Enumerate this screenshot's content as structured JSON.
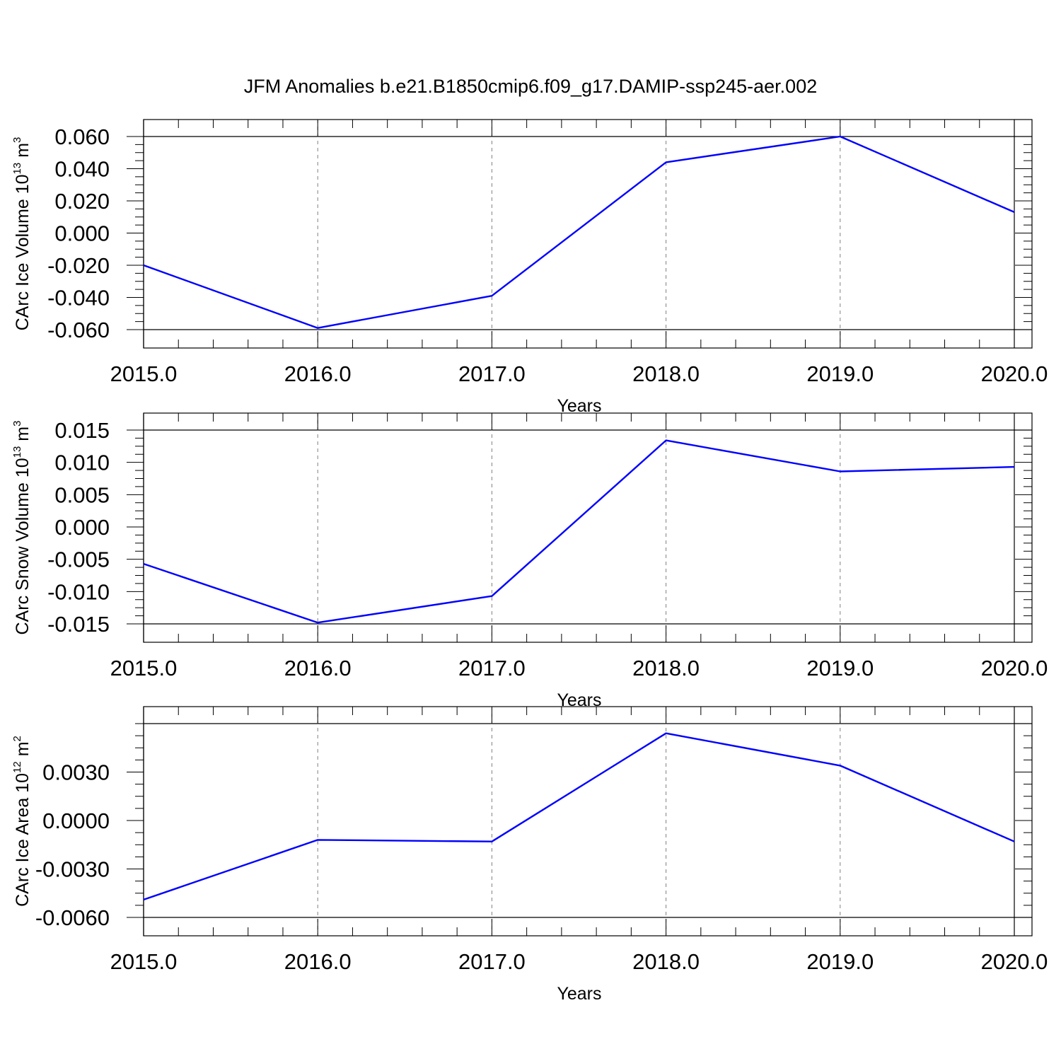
{
  "title": "JFM Anomalies b.e21.B1850cmip6.f09_g17.DAMIP-ssp245-aer.002",
  "colors": {
    "line": "#0000ff",
    "axis": "#000000",
    "grid": "#808080",
    "background": "#ffffff"
  },
  "chart_data": [
    {
      "type": "line",
      "xlabel": "Years",
      "ylabel": {
        "text": "CArc Ice Volume 10",
        "exponent": "13",
        "unit": "m",
        "unit_exponent": "3"
      },
      "x": [
        2015,
        2016,
        2017,
        2018,
        2019,
        2020
      ],
      "x_tick_labels": [
        "2015.0",
        "2016.0",
        "2017.0",
        "2018.0",
        "2019.0",
        "2020.0"
      ],
      "series": [
        {
          "values": [
            -0.02,
            -0.059,
            -0.039,
            0.044,
            0.06,
            0.013
          ]
        }
      ],
      "ylim": [
        -0.06,
        0.06
      ],
      "y_ticks": [
        -0.06,
        -0.04,
        -0.02,
        0.0,
        0.02,
        0.04,
        0.06
      ],
      "y_tick_labels": [
        "-0.060",
        "-0.040",
        "-0.020",
        "0.000",
        "0.020",
        "0.040",
        "0.060"
      ],
      "grid": "vertical dashed at years",
      "legend": "none"
    },
    {
      "type": "line",
      "xlabel": "Years",
      "ylabel": {
        "text": "CArc Snow Volume 10",
        "exponent": "13",
        "unit": "m",
        "unit_exponent": "3"
      },
      "x": [
        2015,
        2016,
        2017,
        2018,
        2019,
        2020
      ],
      "x_tick_labels": [
        "2015.0",
        "2016.0",
        "2017.0",
        "2018.0",
        "2019.0",
        "2020.0"
      ],
      "series": [
        {
          "values": [
            -0.0057,
            -0.0148,
            -0.0107,
            0.0134,
            0.0086,
            0.0093
          ]
        }
      ],
      "ylim": [
        -0.015,
        0.015
      ],
      "y_ticks": [
        -0.015,
        -0.01,
        -0.005,
        0.0,
        0.005,
        0.01,
        0.015
      ],
      "y_tick_labels": [
        "-0.015",
        "-0.010",
        "-0.005",
        "0.000",
        "0.005",
        "0.010",
        "0.015"
      ],
      "grid": "vertical dashed at years",
      "legend": "none"
    },
    {
      "type": "line",
      "xlabel": "Years",
      "ylabel": {
        "text": "CArc Ice Area 10",
        "exponent": "12",
        "unit": "m",
        "unit_exponent": "2"
      },
      "x": [
        2015,
        2016,
        2017,
        2018,
        2019,
        2020
      ],
      "x_tick_labels": [
        "2015.0",
        "2016.0",
        "2017.0",
        "2018.0",
        "2019.0",
        "2020.0"
      ],
      "series": [
        {
          "values": [
            -0.0049,
            -0.0012,
            -0.0013,
            0.0054,
            0.0034,
            -0.0013
          ]
        }
      ],
      "ylim": [
        -0.006,
        0.006
      ],
      "y_ticks": [
        -0.006,
        -0.003,
        0.0,
        0.003
      ],
      "y_tick_labels": [
        "-0.0060",
        "-0.0030",
        "0.0000",
        "0.0030"
      ],
      "grid": "vertical dashed at years",
      "legend": "none"
    }
  ]
}
